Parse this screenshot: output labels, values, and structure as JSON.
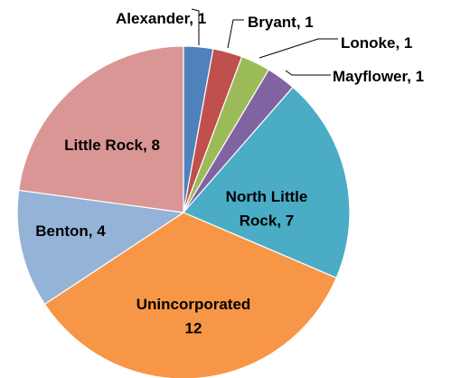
{
  "chart_data": {
    "type": "pie",
    "title": "",
    "start_angle": "12 o'clock",
    "direction": "clockwise",
    "legend": "none",
    "slices": [
      {
        "label": "Alexander",
        "value": 1,
        "color": "#4F81BD",
        "text": "Alexander, 1"
      },
      {
        "label": "Bryant",
        "value": 1,
        "color": "#C0504D",
        "text": "Bryant, 1"
      },
      {
        "label": "Lonoke",
        "value": 1,
        "color": "#9BBB59",
        "text": "Lonoke, 1"
      },
      {
        "label": "Mayflower",
        "value": 1,
        "color": "#8064A2",
        "text": "Mayflower, 1"
      },
      {
        "label": "North Little Rock",
        "value": 7,
        "color": "#4BACC6",
        "text": [
          "North Little",
          "Rock, 7"
        ]
      },
      {
        "label": "Unincorporated",
        "value": 12,
        "color": "#F79646",
        "text": [
          "Unincorporated",
          "12"
        ]
      },
      {
        "label": "Benton",
        "value": 4,
        "color": "#95B3D7",
        "text": "Benton, 4"
      },
      {
        "label": "Little Rock",
        "value": 8,
        "color": "#D99694",
        "text": "Little Rock, 8"
      }
    ]
  }
}
